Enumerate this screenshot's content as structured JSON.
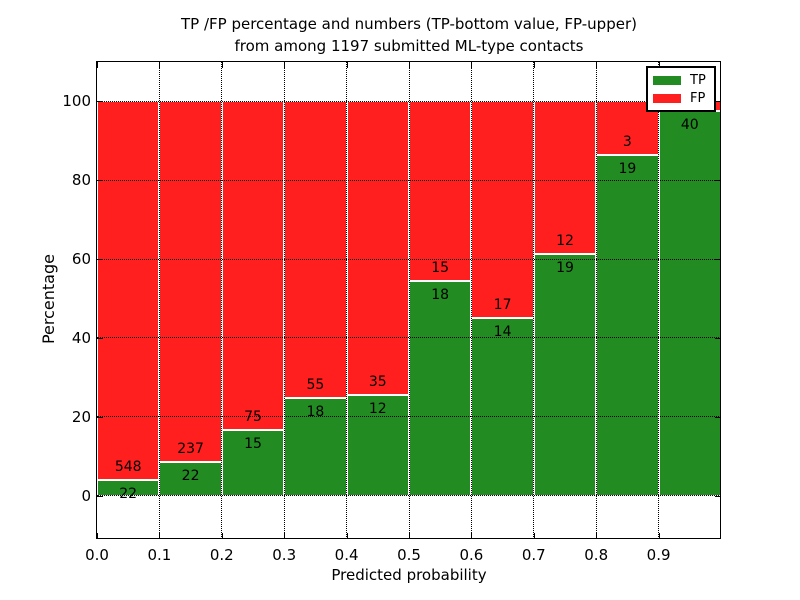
{
  "title": {
    "line1": "TP /FP percentage and numbers (TP-bottom value, FP-upper)",
    "line2": "from among 1197 submitted ML-type contacts"
  },
  "chart_data": {
    "type": "bar",
    "stacked": true,
    "orientation": "vertical",
    "title": "TP /FP percentage and numbers (TP-bottom value, FP-upper)\nfrom among 1197 submitted ML-type contacts",
    "total_contacts": 1197,
    "xlabel": "Predicted probability",
    "ylabel": "Percentage",
    "xlim": [
      0.0,
      1.0
    ],
    "ylim": [
      -11,
      110
    ],
    "x_tick_values": [
      0.0,
      0.1,
      0.2,
      0.3,
      0.4,
      0.5,
      0.6,
      0.7,
      0.8,
      0.9
    ],
    "x_tick_labels": [
      "0.0",
      "0.1",
      "0.2",
      "0.3",
      "0.4",
      "0.5",
      "0.6",
      "0.7",
      "0.8",
      "0.9"
    ],
    "y_tick_values": [
      0,
      20,
      40,
      60,
      80,
      100
    ],
    "y_tick_labels": [
      "0",
      "20",
      "40",
      "60",
      "80",
      "100"
    ],
    "grid": {
      "visible": true,
      "style": "dotted",
      "color": "#000000"
    },
    "values_are": "percent_of_bin_total",
    "bin_edges": [
      0.0,
      0.1,
      0.2,
      0.3,
      0.4,
      0.5,
      0.6,
      0.7,
      0.8,
      0.9,
      1.0
    ],
    "series": [
      {
        "name": "TP",
        "position": "bottom",
        "color": "#228B22",
        "counts": [
          22,
          22,
          15,
          18,
          12,
          18,
          14,
          19,
          19,
          40
        ],
        "labels": [
          "22",
          "22",
          "15",
          "18",
          "12",
          "18",
          "14",
          "19",
          "19",
          "40"
        ]
      },
      {
        "name": "FP",
        "position": "top",
        "color": "#FF1F1F",
        "counts": [
          548,
          237,
          75,
          55,
          35,
          15,
          17,
          12,
          3,
          1
        ],
        "labels": [
          "548",
          "237",
          "75",
          "55",
          "35",
          "15",
          "17",
          "12",
          "3",
          ""
        ]
      }
    ],
    "bar_edge_color": "#FFFFFF",
    "legend": {
      "position": "upper right",
      "entries": [
        "TP",
        "FP"
      ]
    }
  }
}
